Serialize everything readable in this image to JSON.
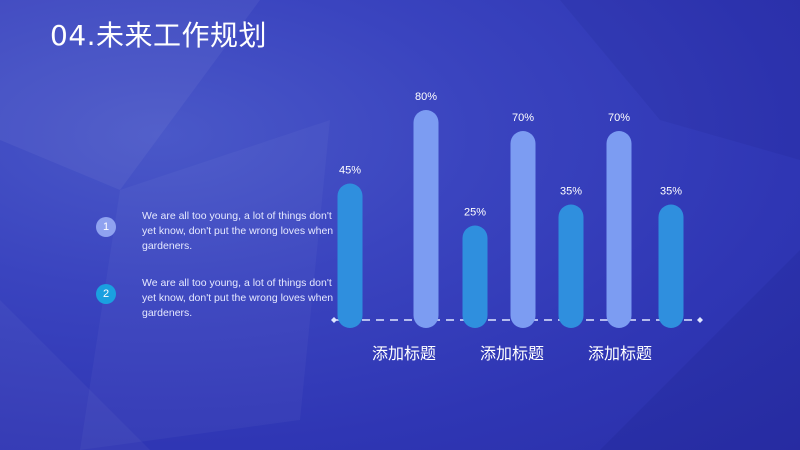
{
  "slide": {
    "title": "04.未来工作规划",
    "background_color": "#3640b8"
  },
  "items": [
    {
      "number": "1",
      "text": "We are all too young, a lot of things don't yet know, don't put the wrong loves when gardeners.",
      "badge_color": "#8fa2f0"
    },
    {
      "number": "2",
      "text": "We are all too young, a lot of things don't yet know, don't put the wrong loves when gardeners.",
      "badge_color": "#1aa0e0"
    }
  ],
  "chart_data": {
    "type": "bar",
    "values": [
      45,
      80,
      25,
      70,
      35,
      70,
      35
    ],
    "value_labels": [
      "45%",
      "80%",
      "25%",
      "70%",
      "35%",
      "70%",
      "35%"
    ],
    "bar_colors": [
      "#2f8fde",
      "#7c9cf2",
      "#2f8fde",
      "#7c9cf2",
      "#2f8fde",
      "#7c9cf2",
      "#2f8fde"
    ],
    "category_labels": [
      "添加标题",
      "添加标题",
      "添加标题"
    ],
    "ylim": [
      0,
      100
    ]
  }
}
